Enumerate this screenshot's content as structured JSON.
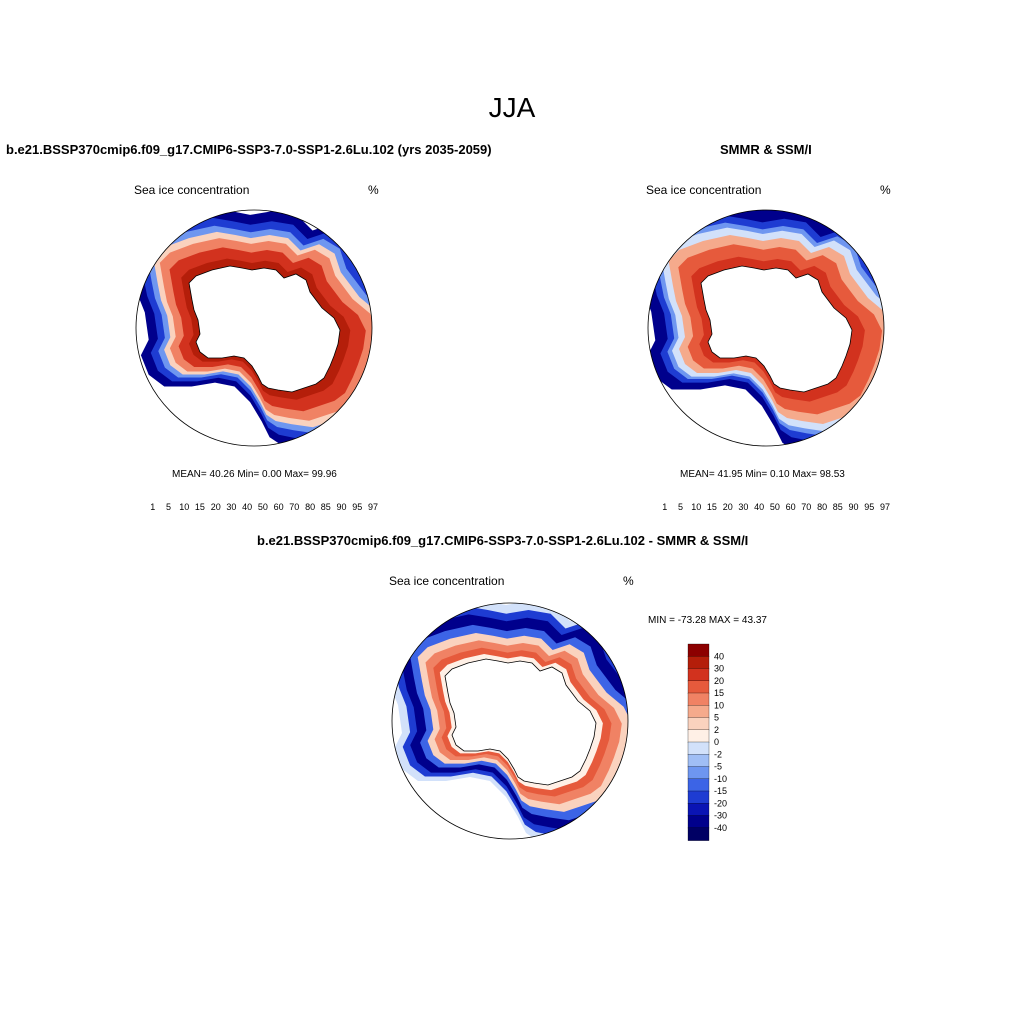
{
  "figure": {
    "title": "JJA"
  },
  "panels": [
    {
      "title": "b.e21.BSSP370cmip6.f09_g17.CMIP6-SSP3-7.0-SSP1-2.6Lu.102 (yrs 2035-2059)",
      "variable": "Sea ice concentration",
      "units": "%",
      "stats": "MEAN=  40.26  Min=   0.00  Max=  99.96"
    },
    {
      "title": "SMMR & SSM/I",
      "variable": "Sea ice concentration",
      "units": "%",
      "stats": "MEAN=  41.95  Min=   0.10  Max=  98.53"
    },
    {
      "title": "b.e21.BSSP370cmip6.f09_g17.CMIP6-SSP3-7.0-SSP1-2.6Lu.102 - SMMR & SSM/I",
      "variable": "Sea ice concentration",
      "units": "%",
      "stats": "MIN = -73.28 MAX =  43.37"
    }
  ],
  "colorbars": {
    "concentration": {
      "levels": [
        "1",
        "5",
        "10",
        "15",
        "20",
        "30",
        "40",
        "50",
        "60",
        "70",
        "80",
        "85",
        "90",
        "95",
        "97"
      ],
      "colors": [
        "#00008c",
        "#0a14b4",
        "#1e3cd2",
        "#3c64e6",
        "#6e96f0",
        "#a0bef5",
        "#d2e1fa",
        "#fff0e6",
        "#fad2be",
        "#f5aa8c",
        "#f08264",
        "#e65a3c",
        "#d2321e",
        "#b41e0a",
        "#8c0000"
      ]
    },
    "difference": {
      "levels": [
        "40",
        "30",
        "20",
        "15",
        "10",
        "5",
        "2",
        "0",
        "-2",
        "-5",
        "-10",
        "-15",
        "-20",
        "-30",
        "-40"
      ],
      "colors": [
        "#8c0000",
        "#b41e0a",
        "#d2321e",
        "#e65a3c",
        "#f08264",
        "#f5aa8c",
        "#fad2be",
        "#fff0e6",
        "#d2e1fa",
        "#a0bef5",
        "#6e96f0",
        "#3c64e6",
        "#1e3cd2",
        "#0a14b4",
        "#00008c",
        "#000064"
      ]
    }
  }
}
